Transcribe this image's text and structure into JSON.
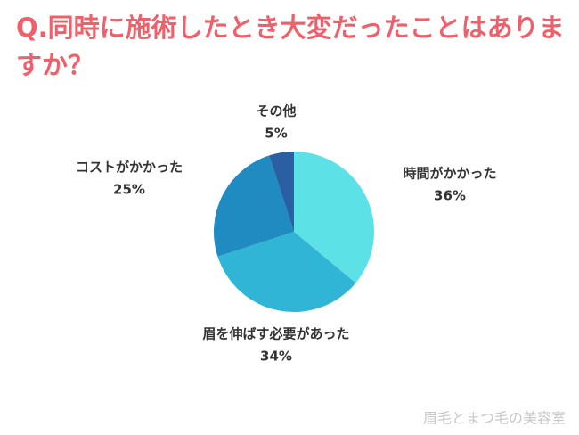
{
  "chart_data": {
    "type": "pie",
    "title": "Q.同時に施術したとき大変だったことはありますか？",
    "categories": [
      "時間がかかった",
      "眉を伸ばす必要があった",
      "コストがかかった",
      "その他"
    ],
    "values": [
      36,
      34,
      25,
      5
    ],
    "value_labels": [
      "36%",
      "34%",
      "25%",
      "5%"
    ],
    "colors": [
      "#5ce1e6",
      "#31b5d7",
      "#1f8bc1",
      "#2a5fa3"
    ],
    "watermark": "眉毛とまつ毛の美容室"
  }
}
